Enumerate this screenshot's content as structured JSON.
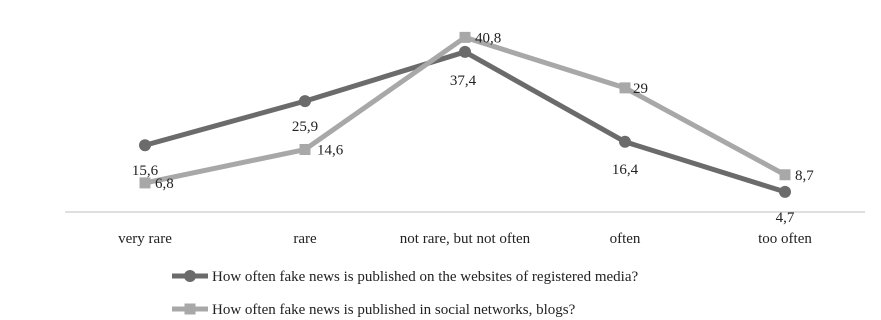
{
  "chart_data": {
    "type": "line",
    "categories": [
      "very rare",
      "rare",
      "not rare, but not often",
      "often",
      "too often"
    ],
    "series": [
      {
        "name": "How often fake news is published on the websites of registered media?",
        "values": [
          15.6,
          25.9,
          37.4,
          16.4,
          4.7
        ],
        "labels": [
          "15,6",
          "25,9",
          "37,4",
          "16,4",
          "4,7"
        ],
        "color": "#6b6b6b"
      },
      {
        "name": "How often fake news is published in social networks, blogs?",
        "values": [
          6.8,
          14.6,
          40.8,
          29,
          8.7
        ],
        "labels": [
          "6,8",
          "14,6",
          "40,8",
          "29",
          "8,7"
        ],
        "color": "#a8a8a8"
      }
    ],
    "title": "",
    "xlabel": "",
    "ylabel": "",
    "ylim": [
      0,
      45
    ],
    "grid": false,
    "legend_position": "bottom"
  }
}
